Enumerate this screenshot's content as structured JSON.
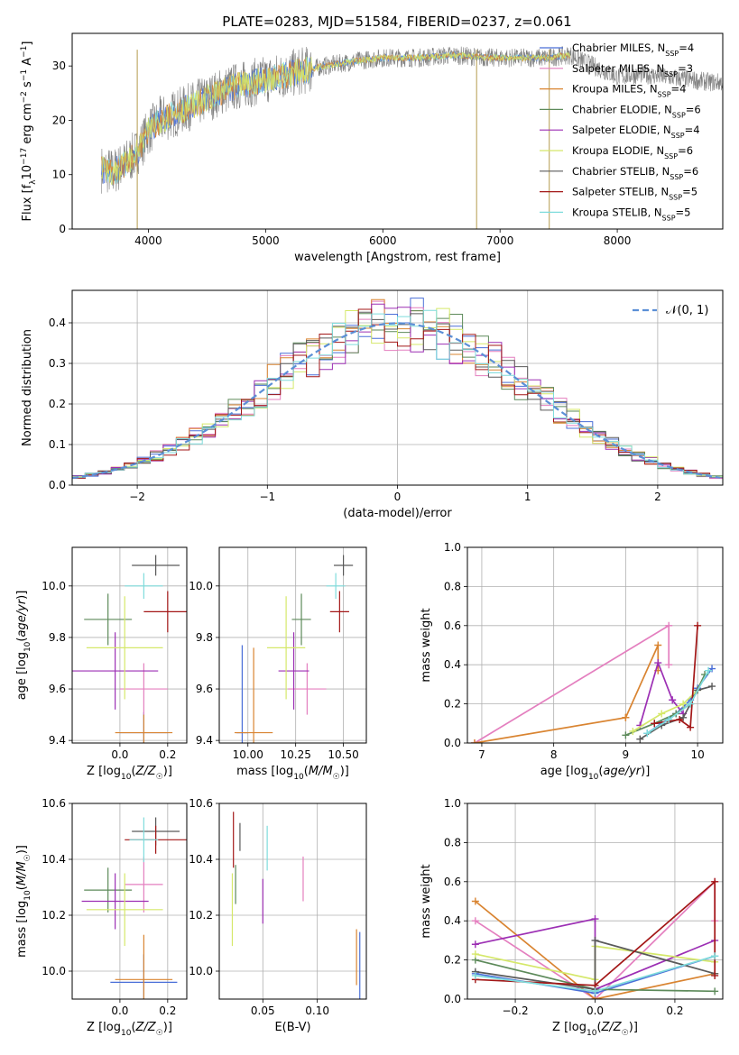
{
  "figure_title": "PLATE=0283, MJD=51584, FIBERID=0237, z=0.061",
  "colors": {
    "chabrier_miles": "#4a6fd8",
    "salpeter_miles": "#e47fbf",
    "kroupa_miles": "#d98431",
    "chabrier_elodie": "#5d8a5a",
    "salpeter_elodie": "#9c2fb4",
    "kroupa_elodie": "#d5e86a",
    "chabrier_stelib": "#5a5a5a",
    "salpeter_stelib": "#a31717",
    "kroupa_stelib": "#7fdcdc",
    "normal": "#5b8fd6",
    "data": "#808080"
  },
  "chart_data": [
    {
      "id": "spectrum",
      "type": "line",
      "xlabel": "wavelength [Angstrom, rest frame]",
      "ylabel": "Flux [f_λ 10^-17 erg cm^-2 s^-1 A^-1]",
      "xlim": [
        3350,
        8900
      ],
      "ylim": [
        0,
        36
      ],
      "xticks": [
        "4000",
        "5000",
        "6000",
        "7000",
        "8000"
      ],
      "yticks": [
        "0",
        "10",
        "20",
        "30"
      ],
      "legend_position": "right",
      "legend": [
        {
          "label": "Chabrier MILES, N",
          "sub": "SSP",
          "suffix": "=4",
          "key": "chabrier_miles"
        },
        {
          "label": "Salpeter MILES, N",
          "sub": "SSP",
          "suffix": "=3",
          "key": "salpeter_miles"
        },
        {
          "label": "Kroupa MILES, N",
          "sub": "SSP",
          "suffix": "=4",
          "key": "kroupa_miles"
        },
        {
          "label": "Chabrier ELODIE, N",
          "sub": "SSP",
          "suffix": "=6",
          "key": "chabrier_elodie"
        },
        {
          "label": "Salpeter ELODIE, N",
          "sub": "SSP",
          "suffix": "=4",
          "key": "salpeter_elodie"
        },
        {
          "label": "Kroupa ELODIE, N",
          "sub": "SSP",
          "suffix": "=6",
          "key": "kroupa_elodie"
        },
        {
          "label": "Chabrier STELIB, N",
          "sub": "SSP",
          "suffix": "=6",
          "key": "chabrier_stelib"
        },
        {
          "label": "Salpeter STELIB, N",
          "sub": "SSP",
          "suffix": "=5",
          "key": "salpeter_stelib"
        },
        {
          "label": "Kroupa STELIB, N",
          "sub": "SSP",
          "suffix": "=5",
          "key": "kroupa_stelib"
        }
      ],
      "model_curve": {
        "x": [
          3600,
          3700,
          3800,
          3900,
          4000,
          4100,
          4200,
          4300,
          4500,
          4700,
          4900,
          5100,
          5300,
          5500,
          5800,
          6000,
          6300,
          6600,
          6900,
          7200,
          7400,
          7600,
          7800,
          8000,
          8200,
          8400,
          8600,
          8800
        ],
        "y": [
          11,
          10.5,
          12,
          14,
          18,
          20,
          21,
          22,
          24,
          26,
          27,
          28,
          29,
          30,
          31,
          31.5,
          31.5,
          32,
          31.5,
          31.5,
          31.5,
          32,
          30,
          28,
          28.5,
          28,
          27.5,
          27
        ]
      },
      "vertical_spikes_x": [
        3905,
        6800,
        7420
      ]
    },
    {
      "id": "residuals",
      "type": "histogram",
      "xlabel": "(data-model)/error",
      "ylabel": "Normed distribution",
      "xlim": [
        -2.5,
        2.5
      ],
      "ylim": [
        0,
        0.48
      ],
      "xticks": [
        "-2",
        "-1",
        "0",
        "1",
        "2"
      ],
      "yticks": [
        "0.0",
        "0.1",
        "0.2",
        "0.3",
        "0.4"
      ],
      "legend_position": "top-right",
      "legend_label": "𝒩(0, 1)"
    },
    {
      "id": "age_vs_Z",
      "type": "scatter",
      "xlabel": "Z [log10(Z/Z☉)]",
      "ylabel": "age [log10(age/yr)]",
      "xlim": [
        -0.2,
        0.28
      ],
      "ylim": [
        9.39,
        10.15
      ],
      "xticks": [
        "0.0",
        "0.2"
      ],
      "yticks": [
        "9.4",
        "9.6",
        "9.8",
        "10.0"
      ],
      "points": [
        {
          "key": "chabrier_miles",
          "x": 0.1,
          "y": 9.43,
          "xerr": 0.1,
          "yerr": 0.08
        },
        {
          "key": "salpeter_miles",
          "x": 0.1,
          "y": 9.6,
          "xerr": 0.1,
          "yerr": 0.1
        },
        {
          "key": "kroupa_miles",
          "x": 0.1,
          "y": 9.43,
          "xerr": 0.12,
          "yerr": 0.07
        },
        {
          "key": "chabrier_elodie",
          "x": -0.05,
          "y": 9.87,
          "xerr": 0.1,
          "yerr": 0.1
        },
        {
          "key": "salpeter_elodie",
          "x": -0.02,
          "y": 9.67,
          "xerr": 0.18,
          "yerr": 0.15
        },
        {
          "key": "kroupa_elodie",
          "x": 0.02,
          "y": 9.76,
          "xerr": 0.16,
          "yerr": 0.2
        },
        {
          "key": "chabrier_stelib",
          "x": 0.15,
          "y": 10.08,
          "xerr": 0.1,
          "yerr": 0.04
        },
        {
          "key": "salpeter_stelib",
          "x": 0.2,
          "y": 9.9,
          "xerr": 0.1,
          "yerr": 0.08
        },
        {
          "key": "kroupa_stelib",
          "x": 0.1,
          "y": 10.0,
          "xerr": 0.08,
          "yerr": 0.05
        }
      ]
    },
    {
      "id": "age_vs_mass",
      "type": "scatter",
      "xlabel": "mass [log10(M/M☉)]",
      "ylabel": "",
      "xlim": [
        9.85,
        10.62
      ],
      "ylim": [
        9.39,
        10.15
      ],
      "xticks": [
        "10.00",
        "10.25",
        "10.50"
      ],
      "yticks": [
        "9.4",
        "9.6",
        "9.8",
        "10.0"
      ],
      "points": [
        {
          "key": "chabrier_miles",
          "x": 9.97,
          "y": 9.43,
          "xerr": 0.03,
          "yerr": 0.34
        },
        {
          "key": "salpeter_miles",
          "x": 10.31,
          "y": 9.6,
          "xerr": 0.1,
          "yerr": 0.1
        },
        {
          "key": "kroupa_miles",
          "x": 10.03,
          "y": 9.43,
          "xerr": 0.1,
          "yerr": 0.33
        },
        {
          "key": "chabrier_elodie",
          "x": 10.28,
          "y": 9.87,
          "xerr": 0.05,
          "yerr": 0.1
        },
        {
          "key": "salpeter_elodie",
          "x": 10.24,
          "y": 9.67,
          "xerr": 0.08,
          "yerr": 0.15
        },
        {
          "key": "kroupa_elodie",
          "x": 10.2,
          "y": 9.76,
          "xerr": 0.1,
          "yerr": 0.2
        },
        {
          "key": "chabrier_stelib",
          "x": 10.5,
          "y": 10.08,
          "xerr": 0.05,
          "yerr": 0.04
        },
        {
          "key": "salpeter_stelib",
          "x": 10.48,
          "y": 9.9,
          "xerr": 0.05,
          "yerr": 0.08
        },
        {
          "key": "kroupa_stelib",
          "x": 10.46,
          "y": 10.0,
          "xerr": 0.05,
          "yerr": 0.05
        }
      ]
    },
    {
      "id": "weight_vs_age",
      "type": "line",
      "xlabel": "age [log10(age/yr)]",
      "ylabel": "mass weight",
      "xlim": [
        6.8,
        10.35
      ],
      "ylim": [
        0,
        1.0
      ],
      "xticks": [
        "7",
        "8",
        "9",
        "10"
      ],
      "yticks": [
        "0.0",
        "0.2",
        "0.4",
        "0.6",
        "0.8",
        "1.0"
      ],
      "series": [
        {
          "key": "salpeter_miles",
          "x": [
            6.9,
            9.6,
            9.6
          ],
          "y": [
            0.0,
            0.6,
            0.4
          ]
        },
        {
          "key": "kroupa_miles",
          "x": [
            6.9,
            9.0,
            9.0,
            9.45,
            9.45
          ],
          "y": [
            0.0,
            0.13,
            0.13,
            0.5,
            0.37
          ]
        },
        {
          "key": "chabrier_miles",
          "x": [
            9.3,
            9.5,
            9.7,
            9.9,
            10.0,
            10.2
          ],
          "y": [
            0.05,
            0.1,
            0.15,
            0.22,
            0.28,
            0.38
          ]
        },
        {
          "key": "salpeter_elodie",
          "x": [
            9.2,
            9.45,
            9.65,
            9.8
          ],
          "y": [
            0.09,
            0.41,
            0.22,
            0.15
          ]
        },
        {
          "key": "chabrier_elodie",
          "x": [
            9.0,
            9.4,
            9.7,
            9.9,
            10.1
          ],
          "y": [
            0.04,
            0.1,
            0.15,
            0.2,
            0.35
          ]
        },
        {
          "key": "kroupa_elodie",
          "x": [
            9.1,
            9.5,
            9.8,
            10.0
          ],
          "y": [
            0.06,
            0.15,
            0.2,
            0.27
          ]
        },
        {
          "key": "chabrier_stelib",
          "x": [
            9.2,
            9.5,
            9.8,
            10.0,
            10.2
          ],
          "y": [
            0.02,
            0.09,
            0.13,
            0.27,
            0.29
          ]
        },
        {
          "key": "salpeter_stelib",
          "x": [
            9.4,
            9.75,
            9.9,
            10.0
          ],
          "y": [
            0.1,
            0.12,
            0.08,
            0.6
          ]
        },
        {
          "key": "kroupa_stelib",
          "x": [
            9.3,
            9.6,
            9.9,
            10.15
          ],
          "y": [
            0.05,
            0.12,
            0.2,
            0.37
          ]
        }
      ]
    },
    {
      "id": "mass_vs_Z",
      "type": "scatter",
      "xlabel": "Z [log10(Z/Z☉)]",
      "ylabel": "mass [log10(M/M☉)]",
      "xlim": [
        -0.2,
        0.28
      ],
      "ylim": [
        9.9,
        10.6
      ],
      "xticks": [
        "0.0",
        "0.2"
      ],
      "yticks": [
        "10.0",
        "10.2",
        "10.4",
        "10.6"
      ],
      "points": [
        {
          "key": "chabrier_miles",
          "x": 0.1,
          "y": 9.96,
          "xerr": 0.14,
          "yerr": 0.1
        },
        {
          "key": "salpeter_miles",
          "x": 0.1,
          "y": 10.31,
          "xerr": 0.08,
          "yerr": 0.1
        },
        {
          "key": "kroupa_miles",
          "x": 0.1,
          "y": 9.97,
          "xerr": 0.12,
          "yerr": 0.16
        },
        {
          "key": "chabrier_elodie",
          "x": -0.05,
          "y": 10.29,
          "xerr": 0.1,
          "yerr": 0.08
        },
        {
          "key": "salpeter_elodie",
          "x": -0.02,
          "y": 10.25,
          "xerr": 0.14,
          "yerr": 0.1
        },
        {
          "key": "kroupa_elodie",
          "x": 0.02,
          "y": 10.22,
          "xerr": 0.16,
          "yerr": 0.13
        },
        {
          "key": "chabrier_stelib",
          "x": 0.15,
          "y": 10.5,
          "xerr": 0.1,
          "yerr": 0.05
        },
        {
          "key": "salpeter_stelib",
          "x": 0.15,
          "y": 10.47,
          "xerr": 0.13,
          "yerr": 0.05
        },
        {
          "key": "kroupa_stelib",
          "x": 0.1,
          "y": 10.47,
          "xerr": 0.06,
          "yerr": 0.08
        }
      ]
    },
    {
      "id": "mass_vs_ebv",
      "type": "scatter",
      "xlabel": "E(B-V)",
      "ylabel": "",
      "xlim": [
        0.01,
        0.145
      ],
      "ylim": [
        9.9,
        10.6
      ],
      "xticks": [
        "0.05",
        "0.10"
      ],
      "yticks": [
        "10.0",
        "10.2",
        "10.4",
        "10.6"
      ],
      "points": [
        {
          "key": "chabrier_miles",
          "x": 0.139,
          "y": 10.02,
          "xerr": 0.0,
          "yerr": 0.12
        },
        {
          "key": "salpeter_miles",
          "x": 0.087,
          "y": 10.33,
          "xerr": 0.0,
          "yerr": 0.08
        },
        {
          "key": "kroupa_miles",
          "x": 0.136,
          "y": 10.05,
          "xerr": 0.0,
          "yerr": 0.1
        },
        {
          "key": "chabrier_elodie",
          "x": 0.025,
          "y": 10.31,
          "xerr": 0.0,
          "yerr": 0.07
        },
        {
          "key": "salpeter_elodie",
          "x": 0.05,
          "y": 10.25,
          "xerr": 0.0,
          "yerr": 0.08
        },
        {
          "key": "kroupa_elodie",
          "x": 0.022,
          "y": 10.22,
          "xerr": 0.0,
          "yerr": 0.13
        },
        {
          "key": "chabrier_stelib",
          "x": 0.029,
          "y": 10.48,
          "xerr": 0.0,
          "yerr": 0.05
        },
        {
          "key": "salpeter_stelib",
          "x": 0.023,
          "y": 10.47,
          "xerr": 0.0,
          "yerr": 0.1
        },
        {
          "key": "kroupa_stelib",
          "x": 0.054,
          "y": 10.44,
          "xerr": 0.0,
          "yerr": 0.08
        }
      ]
    },
    {
      "id": "weight_vs_Z",
      "type": "line",
      "xlabel": "Z [log10(Z/Z☉)]",
      "ylabel": "mass weight",
      "xlim": [
        -0.32,
        0.32
      ],
      "ylim": [
        0,
        1.0
      ],
      "xticks": [
        "-0.2",
        "0.0",
        "0.2"
      ],
      "yticks": [
        "0.0",
        "0.2",
        "0.4",
        "0.6",
        "0.8",
        "1.0"
      ],
      "series": [
        {
          "key": "salpeter_miles",
          "x": [
            -0.3,
            0.0,
            0.3,
            0.3
          ],
          "y": [
            0.4,
            0.0,
            0.6,
            0.4
          ]
        },
        {
          "key": "kroupa_miles",
          "x": [
            -0.3,
            0.0,
            0.3
          ],
          "y": [
            0.5,
            0.0,
            0.13
          ]
        },
        {
          "key": "chabrier_miles",
          "x": [
            -0.3,
            0.0,
            0.3
          ],
          "y": [
            0.13,
            0.03,
            0.22
          ]
        },
        {
          "key": "salpeter_elodie",
          "x": [
            -0.3,
            0.0,
            0.0,
            0.3
          ],
          "y": [
            0.28,
            0.41,
            0.05,
            0.3
          ]
        },
        {
          "key": "chabrier_elodie",
          "x": [
            -0.3,
            0.0,
            0.3
          ],
          "y": [
            0.2,
            0.05,
            0.04
          ]
        },
        {
          "key": "kroupa_elodie",
          "x": [
            -0.3,
            0.0,
            0.0,
            0.3
          ],
          "y": [
            0.23,
            0.1,
            0.27,
            0.19
          ]
        },
        {
          "key": "chabrier_stelib",
          "x": [
            -0.3,
            0.0,
            0.0,
            0.3
          ],
          "y": [
            0.14,
            0.05,
            0.3,
            0.13
          ]
        },
        {
          "key": "salpeter_stelib",
          "x": [
            -0.3,
            0.0,
            0.3,
            0.3
          ],
          "y": [
            0.1,
            0.07,
            0.6,
            0.12
          ]
        },
        {
          "key": "kroupa_stelib",
          "x": [
            -0.3,
            0.0,
            0.3
          ],
          "y": [
            0.12,
            0.04,
            0.22
          ]
        }
      ]
    }
  ]
}
